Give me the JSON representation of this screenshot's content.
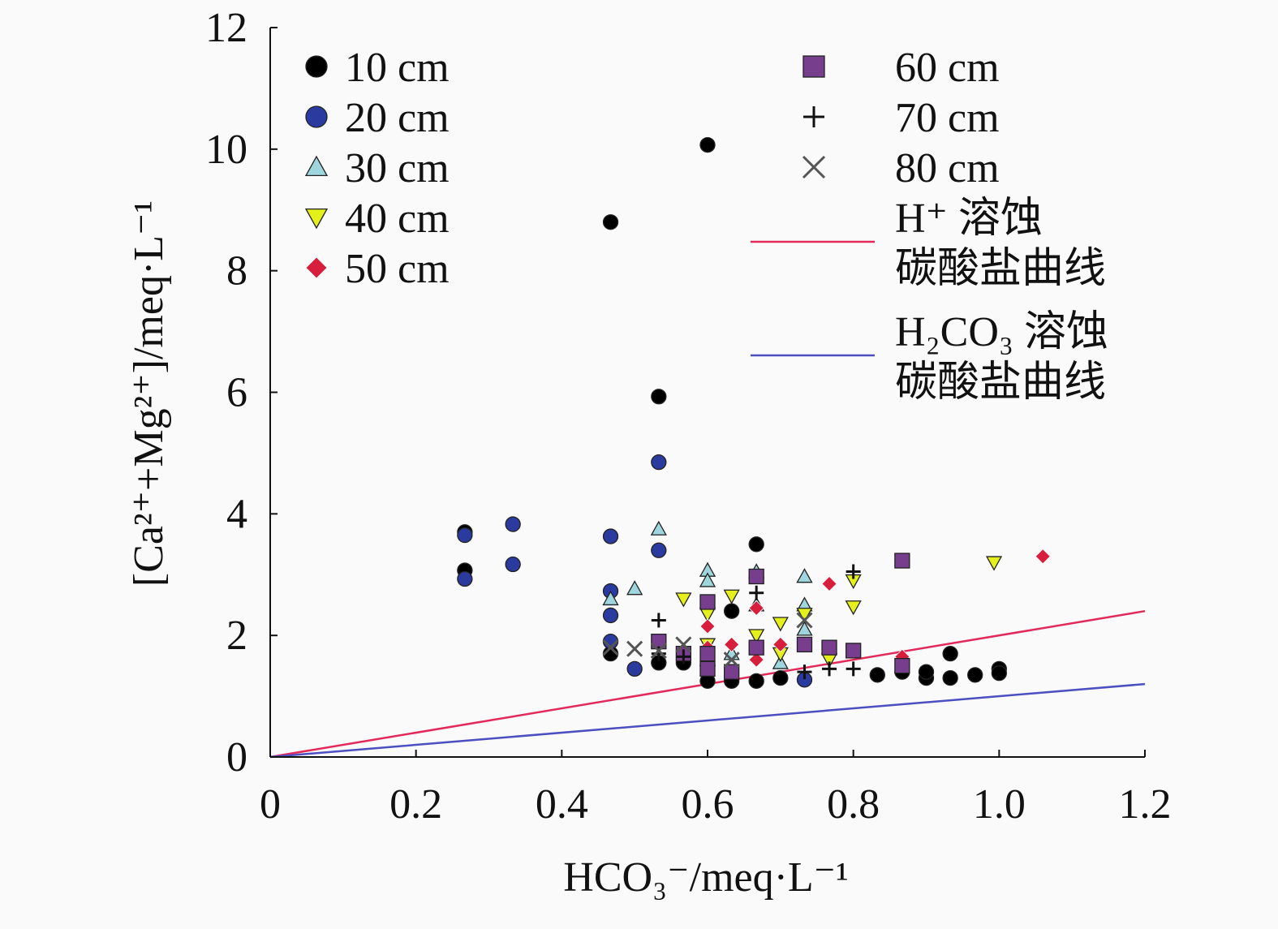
{
  "chart_data": {
    "type": "scatter",
    "title": "",
    "xlabel": "HCO₃⁻/meq·L⁻¹",
    "ylabel": "[Ca²⁺+Mg²⁺]/meq·L⁻¹",
    "xlim": [
      0,
      1.2
    ],
    "ylim": [
      0,
      12
    ],
    "xticks": [
      "0",
      "0.2",
      "0.4",
      "0.6",
      "0.8",
      "1.0",
      "1.2"
    ],
    "xtick_values": [
      0,
      0.2,
      0.4,
      0.6,
      0.8,
      1.0,
      1.2
    ],
    "yticks": [
      "0",
      "2",
      "4",
      "6",
      "8",
      "10",
      "12"
    ],
    "ytick_values": [
      0,
      2,
      4,
      6,
      8,
      10,
      12
    ],
    "grid": false,
    "legend_placement": "top",
    "series": [
      {
        "name": "10 cm",
        "marker": "circle",
        "color": "#000000",
        "points": [
          [
            0.467,
            8.8
          ],
          [
            0.6,
            10.07
          ],
          [
            0.533,
            5.93
          ],
          [
            0.667,
            3.5
          ],
          [
            0.267,
            3.7
          ],
          [
            0.267,
            3.07
          ],
          [
            0.633,
            2.4
          ],
          [
            0.833,
            1.35
          ],
          [
            0.867,
            1.4
          ],
          [
            0.9,
            1.3
          ],
          [
            0.9,
            1.4
          ],
          [
            0.933,
            1.7
          ],
          [
            0.933,
            1.3
          ],
          [
            0.967,
            1.35
          ],
          [
            1.0,
            1.45
          ],
          [
            1.0,
            1.38
          ],
          [
            0.6,
            1.25
          ],
          [
            0.633,
            1.25
          ],
          [
            0.667,
            1.25
          ],
          [
            0.7,
            1.3
          ],
          [
            0.533,
            1.55
          ],
          [
            0.467,
            1.7
          ],
          [
            0.567,
            1.55
          ]
        ]
      },
      {
        "name": "20 cm",
        "marker": "circle",
        "color": "#2b3a9e",
        "points": [
          [
            0.267,
            3.65
          ],
          [
            0.267,
            2.93
          ],
          [
            0.333,
            3.83
          ],
          [
            0.333,
            3.17
          ],
          [
            0.467,
            3.63
          ],
          [
            0.533,
            4.85
          ],
          [
            0.533,
            3.4
          ],
          [
            0.467,
            2.73
          ],
          [
            0.467,
            2.33
          ],
          [
            0.5,
            1.45
          ],
          [
            0.733,
            1.27
          ],
          [
            0.6,
            1.5
          ],
          [
            0.467,
            1.9
          ]
        ]
      },
      {
        "name": "30 cm",
        "marker": "triangle-up",
        "color": "#9fd6de",
        "points": [
          [
            0.533,
            3.75
          ],
          [
            0.5,
            2.77
          ],
          [
            0.467,
            2.6
          ],
          [
            0.6,
            3.07
          ],
          [
            0.6,
            2.9
          ],
          [
            0.667,
            3.05
          ],
          [
            0.733,
            2.97
          ],
          [
            0.733,
            2.5
          ],
          [
            0.667,
            2.5
          ],
          [
            0.733,
            2.1
          ],
          [
            0.6,
            1.6
          ],
          [
            0.633,
            1.7
          ],
          [
            0.7,
            1.55
          ]
        ]
      },
      {
        "name": "40 cm",
        "marker": "triangle-down",
        "color": "#e4ef1c",
        "points": [
          [
            0.567,
            2.6
          ],
          [
            0.633,
            2.65
          ],
          [
            0.6,
            2.35
          ],
          [
            0.7,
            2.2
          ],
          [
            0.8,
            2.9
          ],
          [
            0.8,
            2.47
          ],
          [
            0.993,
            3.2
          ],
          [
            0.667,
            2.0
          ],
          [
            0.733,
            2.35
          ],
          [
            0.6,
            1.85
          ],
          [
            0.7,
            1.7
          ],
          [
            0.767,
            1.6
          ]
        ]
      },
      {
        "name": "50 cm",
        "marker": "diamond",
        "color": "#d71e3c",
        "points": [
          [
            0.767,
            2.85
          ],
          [
            1.06,
            3.3
          ],
          [
            0.6,
            2.15
          ],
          [
            0.633,
            1.85
          ],
          [
            0.667,
            2.45
          ],
          [
            0.7,
            1.85
          ],
          [
            0.867,
            1.65
          ],
          [
            0.6,
            1.8
          ],
          [
            0.667,
            1.6
          ]
        ]
      },
      {
        "name": "60 cm",
        "marker": "square",
        "color": "#773e8e",
        "points": [
          [
            0.867,
            3.23
          ],
          [
            0.667,
            2.97
          ],
          [
            0.6,
            2.55
          ],
          [
            0.6,
            1.7
          ],
          [
            0.667,
            1.8
          ],
          [
            0.733,
            1.85
          ],
          [
            0.767,
            1.8
          ],
          [
            0.8,
            1.75
          ],
          [
            0.867,
            1.5
          ],
          [
            0.6,
            1.45
          ],
          [
            0.633,
            1.4
          ],
          [
            0.533,
            1.9
          ],
          [
            0.567,
            1.7
          ]
        ]
      },
      {
        "name": "70 cm",
        "marker": "plus",
        "color": "#111111",
        "points": [
          [
            0.8,
            3.05
          ],
          [
            0.533,
            2.25
          ],
          [
            0.667,
            2.7
          ],
          [
            0.733,
            1.4
          ],
          [
            0.767,
            1.45
          ],
          [
            0.8,
            1.45
          ],
          [
            0.567,
            1.65
          ],
          [
            0.533,
            1.7
          ]
        ]
      },
      {
        "name": "80 cm",
        "marker": "cross",
        "color": "#555555",
        "points": [
          [
            0.5,
            1.78
          ],
          [
            0.467,
            1.8
          ],
          [
            0.567,
            1.85
          ],
          [
            0.733,
            2.25
          ],
          [
            0.533,
            1.75
          ],
          [
            0.633,
            1.6
          ]
        ]
      }
    ],
    "lines": [
      {
        "name_line1": "H⁺ 溶蚀",
        "name_line2": "碳酸盐曲线",
        "slope": 2,
        "color": "#e3285a"
      },
      {
        "name_line1": "H₂CO₃ 溶蚀",
        "name_line2": "碳酸盐曲线",
        "slope": 1,
        "color": "#4b4fc0"
      }
    ]
  }
}
